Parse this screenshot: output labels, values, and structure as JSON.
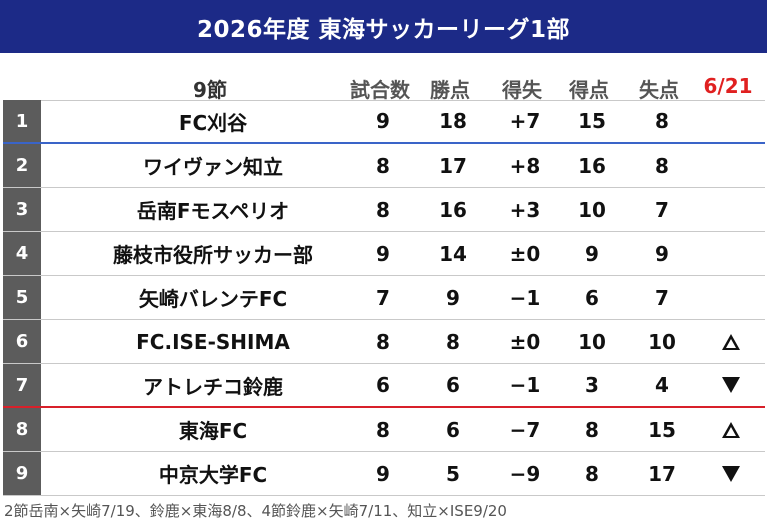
{
  "title": "2026年度 東海サッカーリーグ1部",
  "header": {
    "round": "9節",
    "played": "試合数",
    "points": "勝点",
    "goal_diff": "得失",
    "goals_for": "得点",
    "goals_against": "失点",
    "date": "6/21"
  },
  "rows": [
    {
      "rank": "1",
      "team": "FC刈谷",
      "played": "9",
      "points": "18",
      "goal_diff": "+7",
      "goals_for": "15",
      "goals_against": "8",
      "trend": ""
    },
    {
      "rank": "2",
      "team": "ワイヴァン知立",
      "played": "8",
      "points": "17",
      "goal_diff": "+8",
      "goals_for": "16",
      "goals_against": "8",
      "trend": ""
    },
    {
      "rank": "3",
      "team": "岳南Fモスペリオ",
      "played": "8",
      "points": "16",
      "goal_diff": "+3",
      "goals_for": "10",
      "goals_against": "7",
      "trend": ""
    },
    {
      "rank": "4",
      "team": "藤枝市役所サッカー部",
      "played": "9",
      "points": "14",
      "goal_diff": "±0",
      "goals_for": "9",
      "goals_against": "9",
      "trend": ""
    },
    {
      "rank": "5",
      "team": "矢崎バレンテFC",
      "played": "7",
      "points": "9",
      "goal_diff": "−1",
      "goals_for": "6",
      "goals_against": "7",
      "trend": ""
    },
    {
      "rank": "6",
      "team": "FC.ISE-SHIMA",
      "played": "8",
      "points": "8",
      "goal_diff": "±0",
      "goals_for": "10",
      "goals_against": "10",
      "trend": "up"
    },
    {
      "rank": "7",
      "team": "アトレチコ鈴鹿",
      "played": "6",
      "points": "6",
      "goal_diff": "−1",
      "goals_for": "3",
      "goals_against": "4",
      "trend": "down"
    },
    {
      "rank": "8",
      "team": "東海FC",
      "played": "8",
      "points": "6",
      "goal_diff": "−7",
      "goals_for": "8",
      "goals_against": "15",
      "trend": "up"
    },
    {
      "rank": "9",
      "team": "中京大学FC",
      "played": "9",
      "points": "5",
      "goal_diff": "−9",
      "goals_for": "8",
      "goals_against": "17",
      "trend": "down"
    }
  ],
  "footer": "2節岳南×矢崎7/19、鈴鹿×東海8/8、4節鈴鹿×矢崎7/11、知立×ISE9/20"
}
